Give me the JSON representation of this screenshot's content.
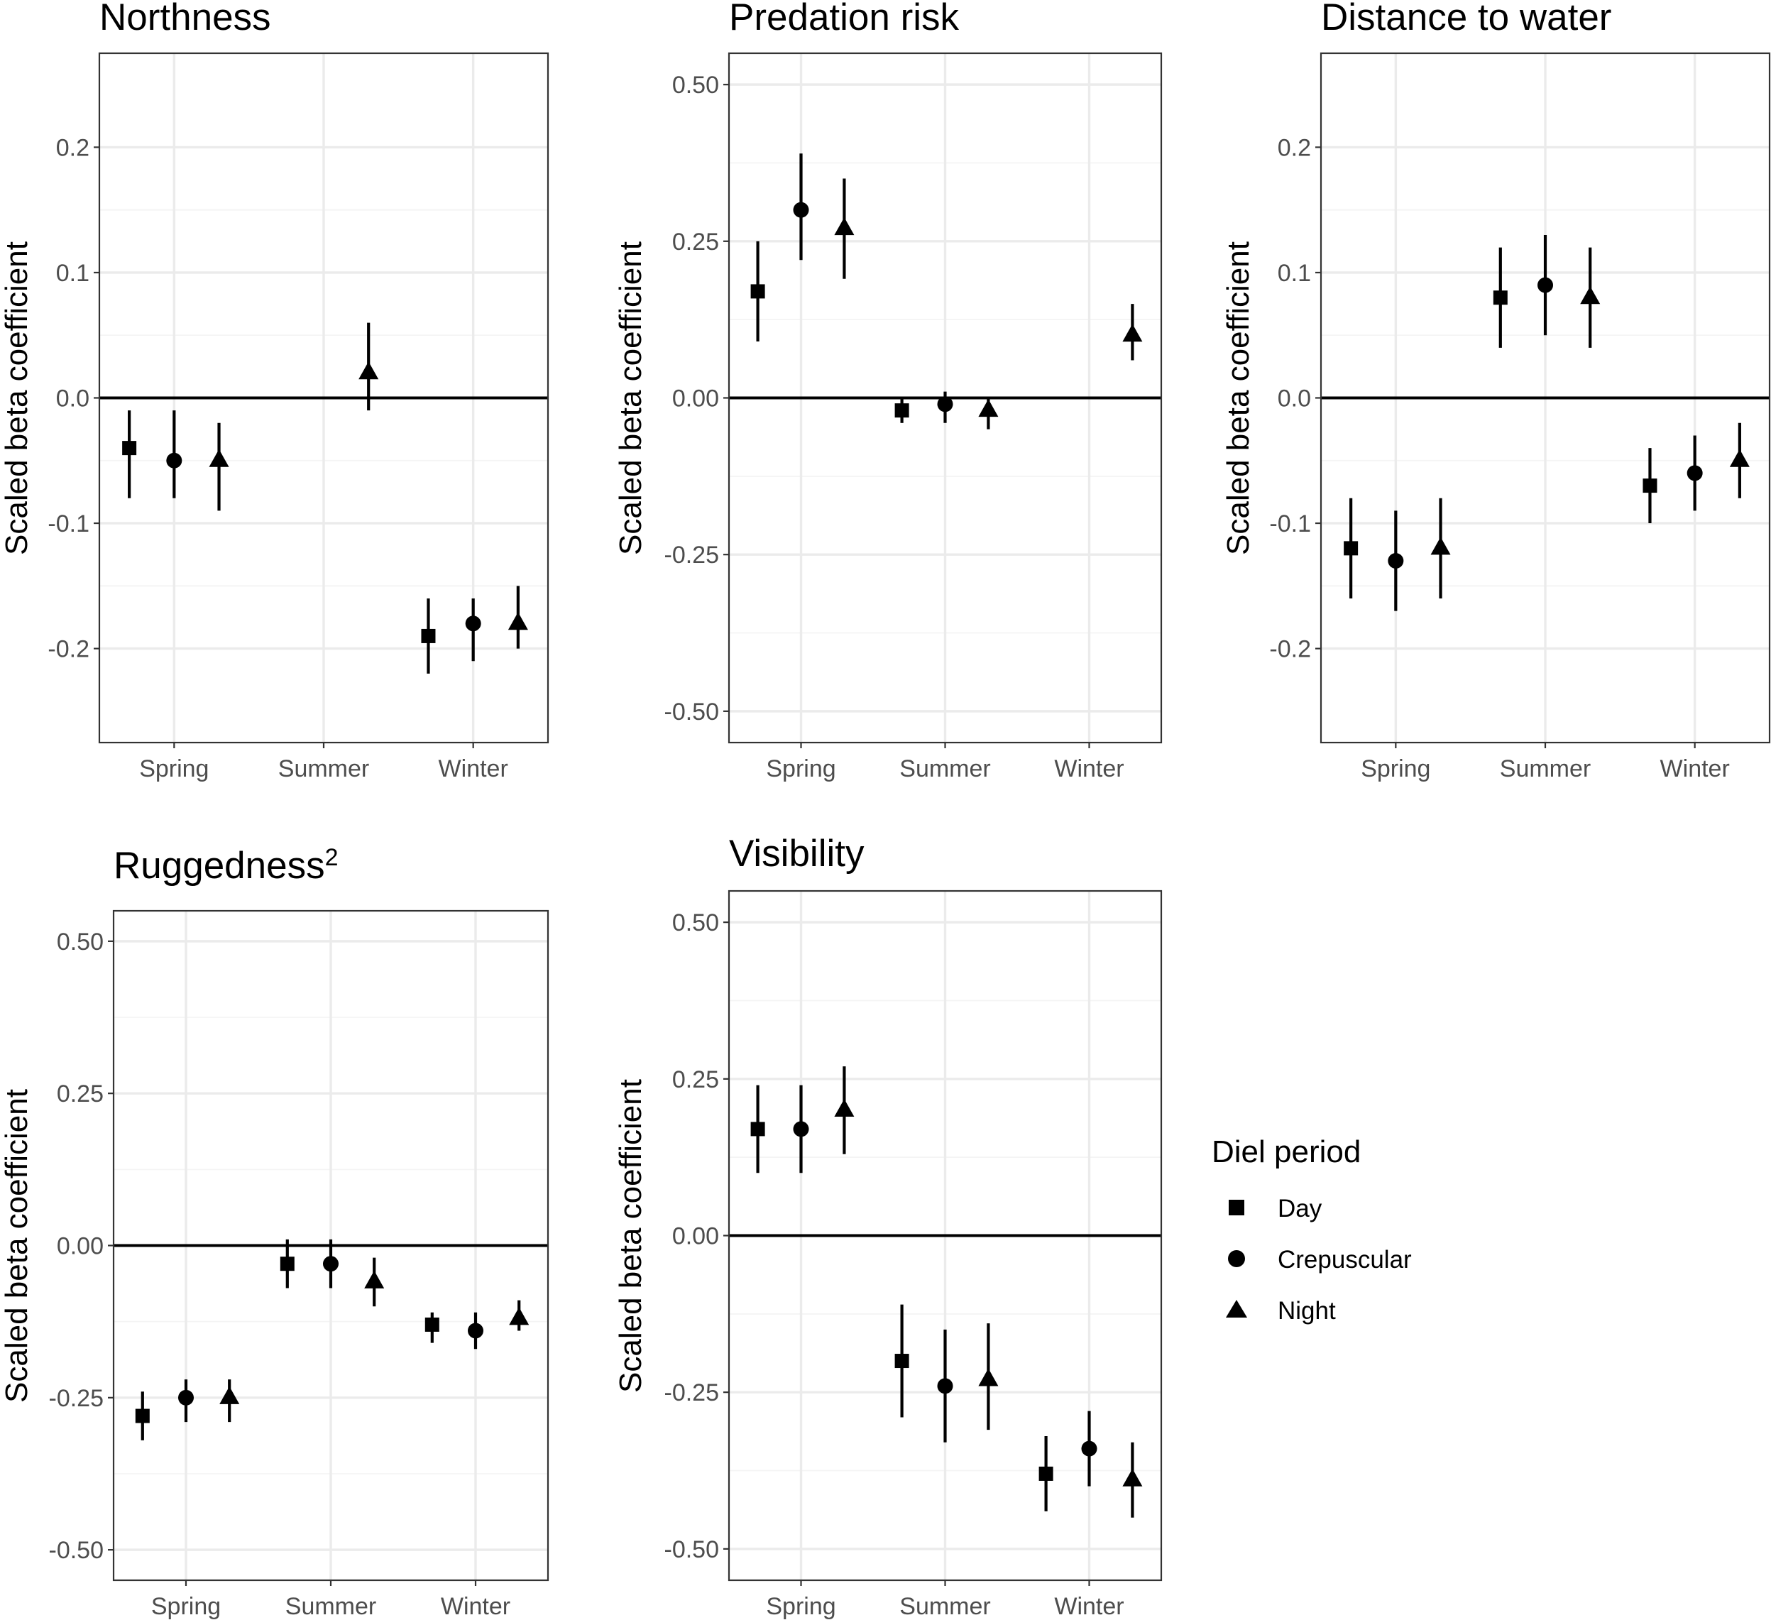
{
  "figure": {
    "y_axis_label": "Scaled beta coefficient",
    "season_categories": [
      "Spring",
      "Summer",
      "Winter"
    ],
    "diel_periods": [
      "Day",
      "Crepuscular",
      "Night"
    ]
  },
  "legend": {
    "title": "Diel period",
    "items": [
      {
        "label": "Day",
        "shape": "square"
      },
      {
        "label": "Crepuscular",
        "shape": "circle"
      },
      {
        "label": "Night",
        "shape": "triangle"
      }
    ]
  },
  "chart_data": [
    {
      "type": "scatter",
      "title": "Northness",
      "title_superscript": "",
      "xlabel": "",
      "ylabel": "Scaled beta coefficient",
      "categories": [
        "Spring",
        "Summer",
        "Winter"
      ],
      "ylim": [
        -0.275,
        0.275
      ],
      "yticks": [
        -0.2,
        -0.1,
        0.0,
        0.1,
        0.2
      ],
      "ytick_labels": [
        "-0.2",
        "-0.1",
        "0.0",
        "0.1",
        "0.2"
      ],
      "points": [
        {
          "season": "Spring",
          "period": "Day",
          "estimate": -0.04,
          "lower": -0.08,
          "upper": -0.01
        },
        {
          "season": "Spring",
          "period": "Crepuscular",
          "estimate": -0.05,
          "lower": -0.08,
          "upper": -0.01
        },
        {
          "season": "Spring",
          "period": "Night",
          "estimate": -0.05,
          "lower": -0.09,
          "upper": -0.02
        },
        {
          "season": "Summer",
          "period": "Night",
          "estimate": 0.02,
          "lower": -0.01,
          "upper": 0.06
        },
        {
          "season": "Winter",
          "period": "Day",
          "estimate": -0.19,
          "lower": -0.22,
          "upper": -0.16
        },
        {
          "season": "Winter",
          "period": "Crepuscular",
          "estimate": -0.18,
          "lower": -0.21,
          "upper": -0.16
        },
        {
          "season": "Winter",
          "period": "Night",
          "estimate": -0.18,
          "lower": -0.2,
          "upper": -0.15
        }
      ]
    },
    {
      "type": "scatter",
      "title": "Predation risk",
      "title_superscript": "",
      "xlabel": "",
      "ylabel": "Scaled beta coefficient",
      "categories": [
        "Spring",
        "Summer",
        "Winter"
      ],
      "ylim": [
        -0.55,
        0.55
      ],
      "yticks": [
        -0.5,
        -0.25,
        0.0,
        0.25,
        0.5
      ],
      "ytick_labels": [
        "-0.50",
        "-0.25",
        "0.00",
        "0.25",
        "0.50"
      ],
      "points": [
        {
          "season": "Spring",
          "period": "Day",
          "estimate": 0.17,
          "lower": 0.09,
          "upper": 0.25
        },
        {
          "season": "Spring",
          "period": "Crepuscular",
          "estimate": 0.3,
          "lower": 0.22,
          "upper": 0.39
        },
        {
          "season": "Spring",
          "period": "Night",
          "estimate": 0.27,
          "lower": 0.19,
          "upper": 0.35
        },
        {
          "season": "Summer",
          "period": "Day",
          "estimate": -0.02,
          "lower": -0.04,
          "upper": 0.0
        },
        {
          "season": "Summer",
          "period": "Crepuscular",
          "estimate": -0.01,
          "lower": -0.04,
          "upper": 0.01
        },
        {
          "season": "Summer",
          "period": "Night",
          "estimate": -0.02,
          "lower": -0.05,
          "upper": 0.0
        },
        {
          "season": "Winter",
          "period": "Night",
          "estimate": 0.1,
          "lower": 0.06,
          "upper": 0.15
        }
      ]
    },
    {
      "type": "scatter",
      "title": "Distance to water",
      "title_superscript": "",
      "xlabel": "",
      "ylabel": "Scaled beta coefficient",
      "categories": [
        "Spring",
        "Summer",
        "Winter"
      ],
      "ylim": [
        -0.275,
        0.275
      ],
      "yticks": [
        -0.2,
        -0.1,
        0.0,
        0.1,
        0.2
      ],
      "ytick_labels": [
        "-0.2",
        "-0.1",
        "0.0",
        "0.1",
        "0.2"
      ],
      "points": [
        {
          "season": "Spring",
          "period": "Day",
          "estimate": -0.12,
          "lower": -0.16,
          "upper": -0.08
        },
        {
          "season": "Spring",
          "period": "Crepuscular",
          "estimate": -0.13,
          "lower": -0.17,
          "upper": -0.09
        },
        {
          "season": "Spring",
          "period": "Night",
          "estimate": -0.12,
          "lower": -0.16,
          "upper": -0.08
        },
        {
          "season": "Summer",
          "period": "Day",
          "estimate": 0.08,
          "lower": 0.04,
          "upper": 0.12
        },
        {
          "season": "Summer",
          "period": "Crepuscular",
          "estimate": 0.09,
          "lower": 0.05,
          "upper": 0.13
        },
        {
          "season": "Summer",
          "period": "Night",
          "estimate": 0.08,
          "lower": 0.04,
          "upper": 0.12
        },
        {
          "season": "Winter",
          "period": "Day",
          "estimate": -0.07,
          "lower": -0.1,
          "upper": -0.04
        },
        {
          "season": "Winter",
          "period": "Crepuscular",
          "estimate": -0.06,
          "lower": -0.09,
          "upper": -0.03
        },
        {
          "season": "Winter",
          "period": "Night",
          "estimate": -0.05,
          "lower": -0.08,
          "upper": -0.02
        }
      ]
    },
    {
      "type": "scatter",
      "title": "Ruggedness",
      "title_superscript": "2",
      "xlabel": "",
      "ylabel": "Scaled beta coefficient",
      "categories": [
        "Spring",
        "Summer",
        "Winter"
      ],
      "ylim": [
        -0.55,
        0.55
      ],
      "yticks": [
        -0.5,
        -0.25,
        0.0,
        0.25,
        0.5
      ],
      "ytick_labels": [
        "-0.50",
        "-0.25",
        "0.00",
        "0.25",
        "0.50"
      ],
      "points": [
        {
          "season": "Spring",
          "period": "Day",
          "estimate": -0.28,
          "lower": -0.32,
          "upper": -0.24
        },
        {
          "season": "Spring",
          "period": "Crepuscular",
          "estimate": -0.25,
          "lower": -0.29,
          "upper": -0.22
        },
        {
          "season": "Spring",
          "period": "Night",
          "estimate": -0.25,
          "lower": -0.29,
          "upper": -0.22
        },
        {
          "season": "Summer",
          "period": "Day",
          "estimate": -0.03,
          "lower": -0.07,
          "upper": 0.01
        },
        {
          "season": "Summer",
          "period": "Crepuscular",
          "estimate": -0.03,
          "lower": -0.07,
          "upper": 0.01
        },
        {
          "season": "Summer",
          "period": "Night",
          "estimate": -0.06,
          "lower": -0.1,
          "upper": -0.02
        },
        {
          "season": "Winter",
          "period": "Day",
          "estimate": -0.13,
          "lower": -0.16,
          "upper": -0.11
        },
        {
          "season": "Winter",
          "period": "Crepuscular",
          "estimate": -0.14,
          "lower": -0.17,
          "upper": -0.11
        },
        {
          "season": "Winter",
          "period": "Night",
          "estimate": -0.12,
          "lower": -0.14,
          "upper": -0.09
        }
      ]
    },
    {
      "type": "scatter",
      "title": "Visibility",
      "title_superscript": "",
      "xlabel": "",
      "ylabel": "Scaled beta coefficient",
      "categories": [
        "Spring",
        "Summer",
        "Winter"
      ],
      "ylim": [
        -0.55,
        0.55
      ],
      "yticks": [
        -0.5,
        -0.25,
        0.0,
        0.25,
        0.5
      ],
      "ytick_labels": [
        "-0.50",
        "-0.25",
        "0.00",
        "0.25",
        "0.50"
      ],
      "points": [
        {
          "season": "Spring",
          "period": "Day",
          "estimate": 0.17,
          "lower": 0.1,
          "upper": 0.24
        },
        {
          "season": "Spring",
          "period": "Crepuscular",
          "estimate": 0.17,
          "lower": 0.1,
          "upper": 0.24
        },
        {
          "season": "Spring",
          "period": "Night",
          "estimate": 0.2,
          "lower": 0.13,
          "upper": 0.27
        },
        {
          "season": "Summer",
          "period": "Day",
          "estimate": -0.2,
          "lower": -0.29,
          "upper": -0.11
        },
        {
          "season": "Summer",
          "period": "Crepuscular",
          "estimate": -0.24,
          "lower": -0.33,
          "upper": -0.15
        },
        {
          "season": "Summer",
          "period": "Night",
          "estimate": -0.23,
          "lower": -0.31,
          "upper": -0.14
        },
        {
          "season": "Winter",
          "period": "Day",
          "estimate": -0.38,
          "lower": -0.44,
          "upper": -0.32
        },
        {
          "season": "Winter",
          "period": "Crepuscular",
          "estimate": -0.34,
          "lower": -0.4,
          "upper": -0.28
        },
        {
          "season": "Winter",
          "period": "Night",
          "estimate": -0.39,
          "lower": -0.45,
          "upper": -0.33
        }
      ]
    }
  ]
}
